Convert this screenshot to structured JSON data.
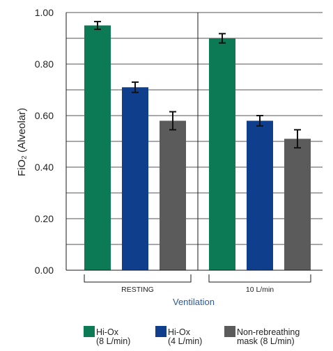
{
  "chart_data": {
    "type": "bar",
    "ylabel": "FiO₂ (Alveolar)",
    "xlabel": "Ventilation",
    "ylim": [
      0,
      1.0
    ],
    "yticks": [
      "0.00",
      "0.20",
      "0.40",
      "0.60",
      "0.80",
      "1.00"
    ],
    "grid": true,
    "legend_position": "bottom",
    "categories": [
      "RESTING",
      "10 L/min"
    ],
    "series": [
      {
        "name": [
          "Hi-Ox",
          "(8 L/min)"
        ],
        "color": "#0b7a55",
        "values": [
          0.95,
          0.9
        ],
        "errors": [
          0.015,
          0.018
        ]
      },
      {
        "name": [
          "Hi-Ox",
          "(4 L/min)"
        ],
        "color": "#0f3f8c",
        "values": [
          0.71,
          0.58
        ],
        "errors": [
          0.02,
          0.02
        ]
      },
      {
        "name": [
          "Non-rebreathing",
          "mask (8 L/min)"
        ],
        "color": "#5b5b5b",
        "values": [
          0.58,
          0.51
        ],
        "errors": [
          0.035,
          0.035
        ]
      }
    ]
  }
}
